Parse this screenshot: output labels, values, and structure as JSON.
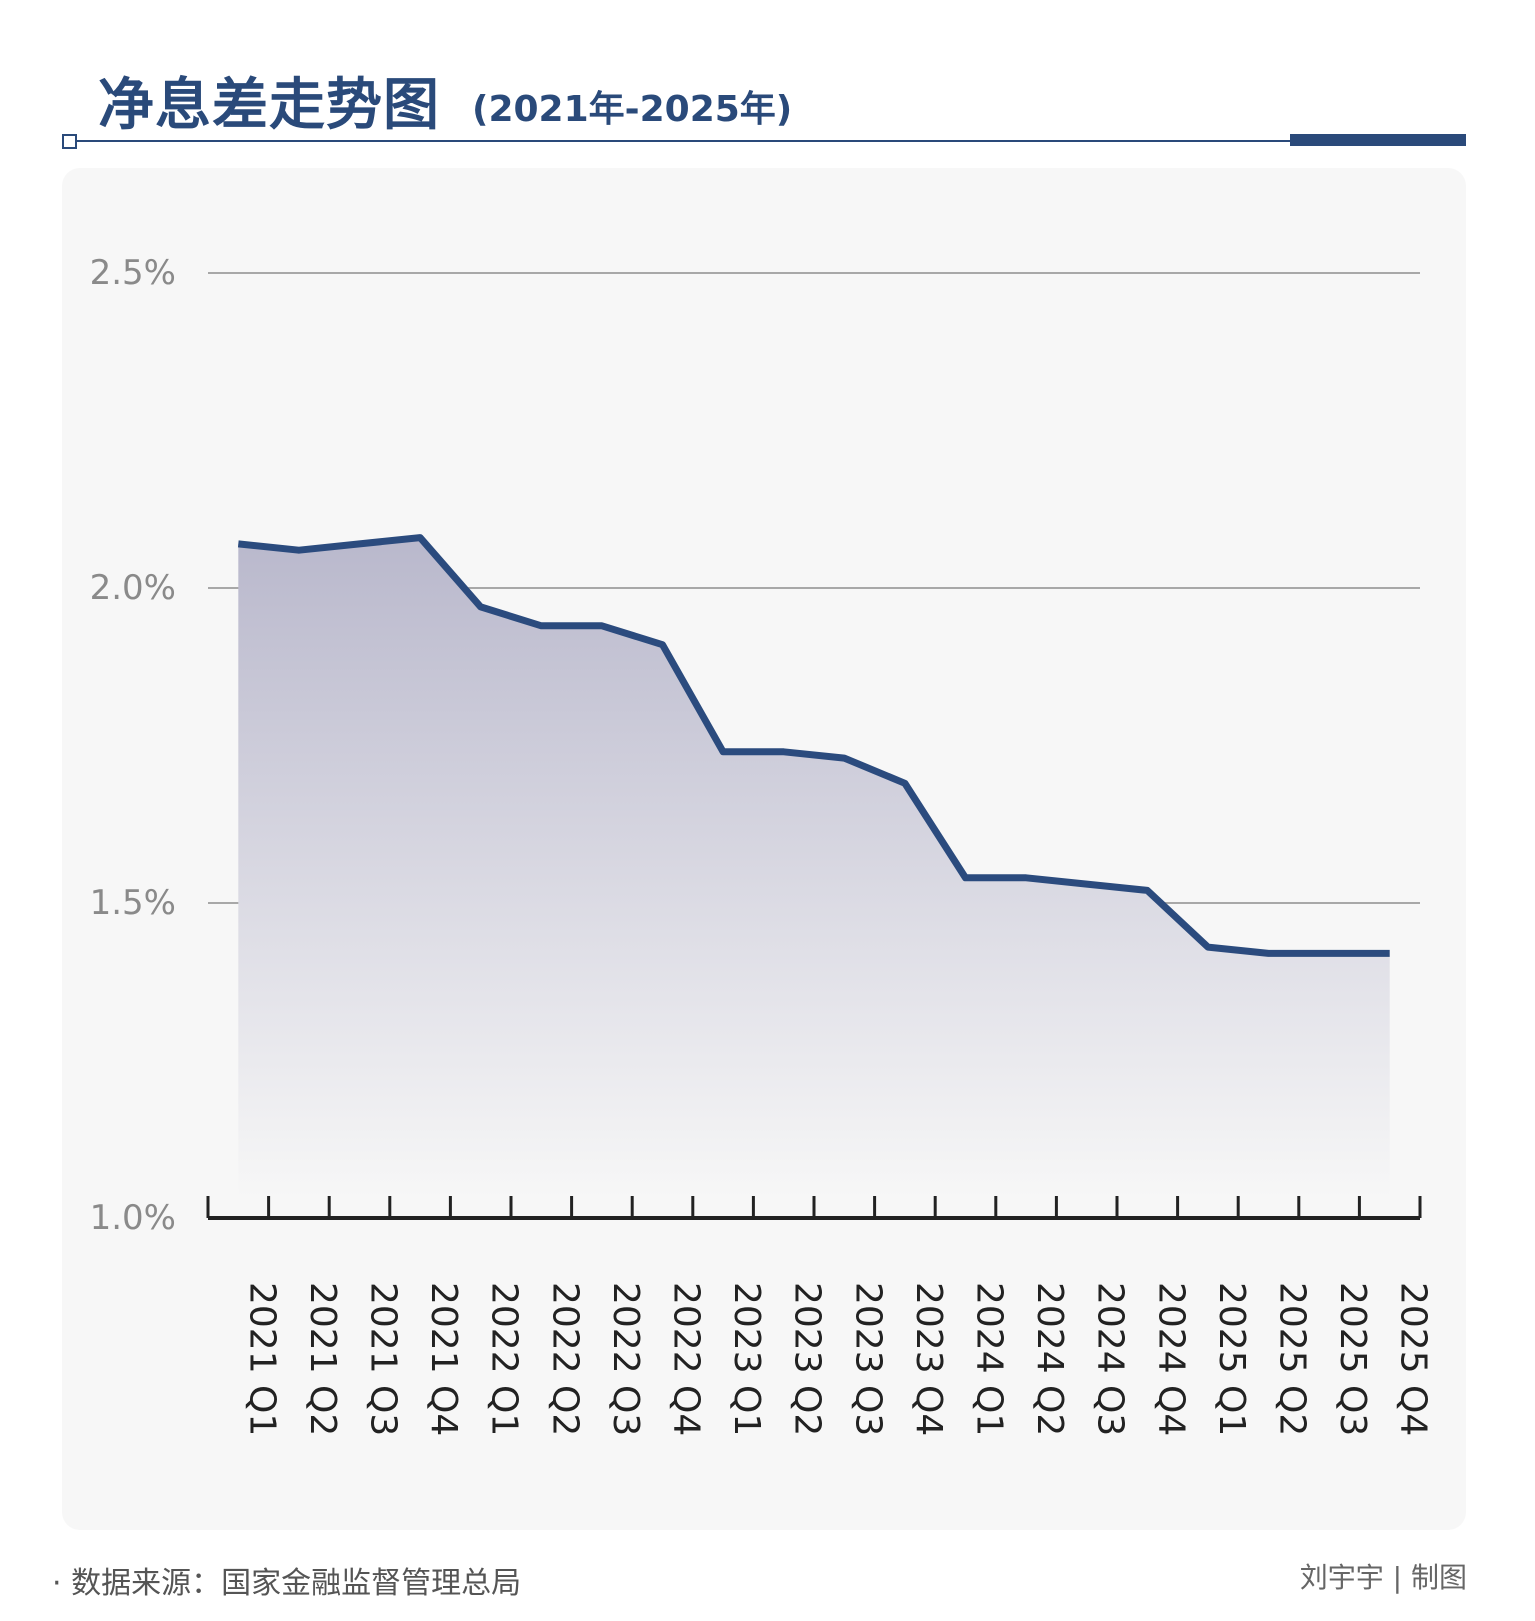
{
  "header": {
    "title": "净息差走势图",
    "subtitle": "(2021年-2025年)"
  },
  "footer": {
    "source": "· 数据来源：国家金融监督管理总局",
    "credit": "刘宇宇 | 制图"
  },
  "colors": {
    "accent": "#2a4a7a",
    "line": "#2b4b7e",
    "grid": "#a8a8a8",
    "tick_text": "#8a8a8a",
    "area_top": "#b9b8cc",
    "panel": "#f7f7f7"
  },
  "chart_data": {
    "type": "area",
    "title": "净息差走势图",
    "subtitle": "(2021年-2025年)",
    "xlabel": "",
    "ylabel": "",
    "ylim": [
      1.0,
      2.5
    ],
    "yticks": [
      1.0,
      1.5,
      2.0,
      2.5
    ],
    "ytick_labels": [
      "1.0%",
      "1.5%",
      "2.0%",
      "2.5%"
    ],
    "grid": true,
    "legend": "none",
    "categories": [
      "2021 Q1",
      "2021 Q2",
      "2021 Q3",
      "2021 Q4",
      "2022 Q1",
      "2022 Q2",
      "2022 Q3",
      "2022 Q4",
      "2023 Q1",
      "2023 Q2",
      "2023 Q3",
      "2023 Q4",
      "2024 Q1",
      "2024 Q2",
      "2024 Q3",
      "2024 Q4",
      "2025 Q1",
      "2025 Q2",
      "2025 Q3",
      "2025 Q4"
    ],
    "values": [
      2.07,
      2.06,
      2.07,
      2.08,
      1.97,
      1.94,
      1.94,
      1.91,
      1.74,
      1.74,
      1.73,
      1.69,
      1.54,
      1.54,
      1.53,
      1.52,
      1.43,
      1.42,
      1.42,
      1.42
    ]
  }
}
